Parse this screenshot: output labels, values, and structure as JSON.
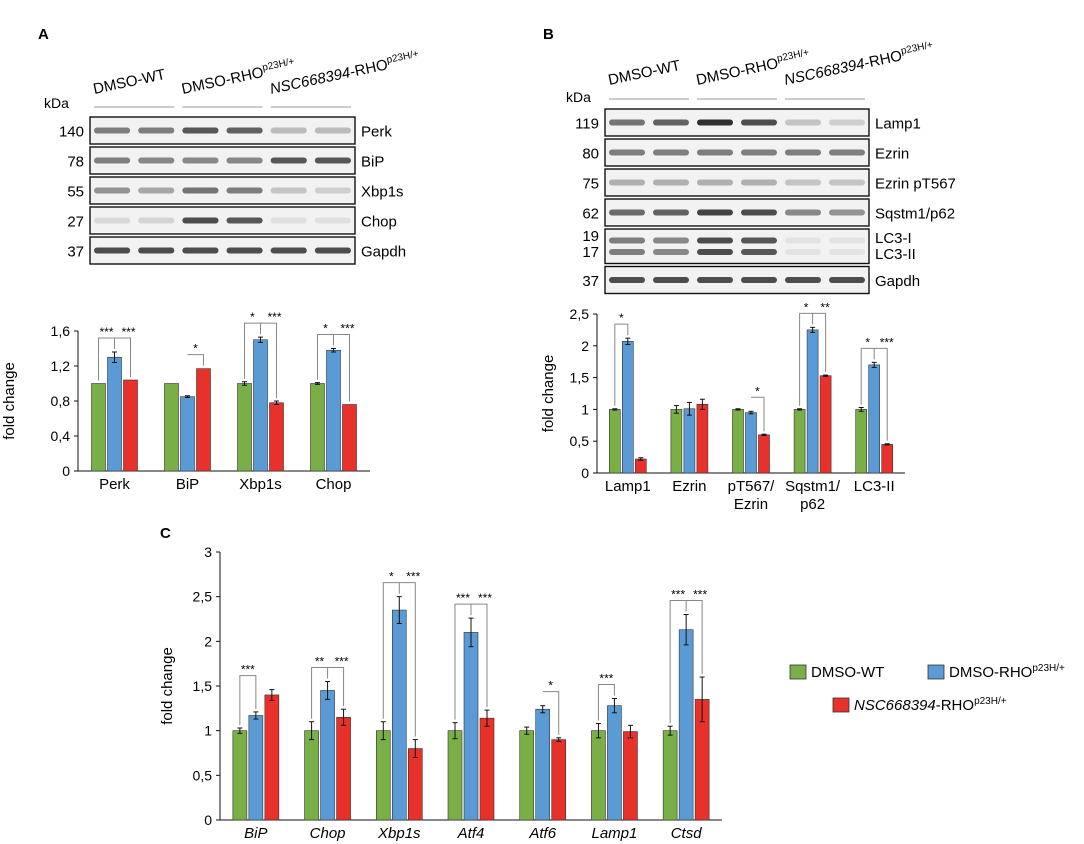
{
  "panels": {
    "A": {
      "letter": "A",
      "kda_label": "kDa",
      "lanes": [
        "DMSO-WT",
        "DMSO-RHO",
        "NSC668394-RHO"
      ],
      "lane_sup": "p23H/+",
      "rows": [
        {
          "mw": "140",
          "protein": "Perk",
          "intens": [
            0.55,
            0.55,
            0.75,
            0.7,
            0.25,
            0.25
          ]
        },
        {
          "mw": "78",
          "protein": "BiP",
          "intens": [
            0.55,
            0.5,
            0.5,
            0.5,
            0.75,
            0.75
          ]
        },
        {
          "mw": "55",
          "protein": "Xbp1s",
          "intens": [
            0.45,
            0.35,
            0.6,
            0.55,
            0.2,
            0.15
          ]
        },
        {
          "mw": "27",
          "protein": "Chop",
          "intens": [
            0.1,
            0.12,
            0.8,
            0.75,
            0.06,
            0.06
          ]
        },
        {
          "mw": "37",
          "protein": "Gapdh",
          "intens": [
            0.8,
            0.8,
            0.8,
            0.8,
            0.8,
            0.8
          ]
        }
      ]
    },
    "B": {
      "letter": "B",
      "kda_label": "kDa",
      "lanes": [
        "DMSO-WT",
        "DMSO-RHO",
        "NSC668394-RHO"
      ],
      "lane_sup": "p23H/+",
      "rows": [
        {
          "mw": "119",
          "protein": "Lamp1",
          "intens": [
            0.6,
            0.7,
            0.95,
            0.8,
            0.2,
            0.15
          ]
        },
        {
          "mw": "80",
          "protein": "Ezrin",
          "intens": [
            0.55,
            0.55,
            0.55,
            0.55,
            0.55,
            0.55
          ]
        },
        {
          "mw": "75",
          "protein": "Ezrin pT567",
          "intens": [
            0.3,
            0.3,
            0.3,
            0.3,
            0.2,
            0.2
          ]
        },
        {
          "mw": "62",
          "protein": "Sqstm1/p62",
          "intens": [
            0.65,
            0.7,
            0.85,
            0.8,
            0.5,
            0.45
          ]
        },
        {
          "mw": "19\n17",
          "protein": "LC3-I\nLC3-II",
          "intens": [
            0.55,
            0.5,
            0.8,
            0.75,
            0.05,
            0.05
          ]
        },
        {
          "mw": "37",
          "protein": "Gapdh",
          "intens": [
            0.8,
            0.8,
            0.8,
            0.8,
            0.8,
            0.8
          ]
        }
      ]
    },
    "C": {
      "letter": "C"
    }
  },
  "legend": {
    "items": [
      {
        "label": "DMSO-WT",
        "color": "#7aae47"
      },
      {
        "label": "DMSO-RHO",
        "sup": "p23H/+",
        "color": "#5b9bd5"
      },
      {
        "label_italic": "NSC668394",
        "label": "-RHO",
        "sup": "p23H/+",
        "color": "#e8312b"
      }
    ]
  },
  "chart_data": [
    {
      "type": "bar",
      "panel": "A",
      "categories": [
        "Perk",
        "BiP",
        "Xbp1s",
        "Chop"
      ],
      "ylabel": "fold change",
      "ylim": [
        0,
        1.6
      ],
      "yticks": [
        "0",
        "0,4",
        "0,8",
        "1,2",
        "1,6"
      ],
      "series": [
        {
          "values": [
            1.0,
            1.0,
            1.0,
            1.0
          ],
          "errors": [
            0,
            0,
            0.02,
            0.01
          ],
          "color": "#7aae47"
        },
        {
          "values": [
            1.3,
            0.85,
            1.5,
            1.38
          ],
          "errors": [
            0.06,
            0.01,
            0.03,
            0.02
          ],
          "color": "#5b9bd5"
        },
        {
          "values": [
            1.04,
            1.17,
            0.78,
            0.76
          ],
          "errors": [
            0,
            0,
            0.02,
            0
          ],
          "color": "#e8312b"
        }
      ],
      "significance": [
        [
          "***",
          "***"
        ],
        [
          "",
          "*"
        ],
        [
          "*",
          "***"
        ],
        [
          "*",
          "***"
        ]
      ]
    },
    {
      "type": "bar",
      "panel": "B",
      "categories": [
        "Lamp1",
        "Ezrin",
        "pT567/\nEzrin",
        "Sqstm1/\np62",
        "LC3-II"
      ],
      "ylabel": "fold change",
      "ylim": [
        0,
        2.5
      ],
      "yticks": [
        "0",
        "0,5",
        "1",
        "1,5",
        "2",
        "2,5"
      ],
      "series": [
        {
          "values": [
            1.0,
            1.0,
            1.0,
            1.0,
            1.0
          ],
          "errors": [
            0.01,
            0.06,
            0.01,
            0.01,
            0.03
          ],
          "color": "#7aae47"
        },
        {
          "values": [
            2.07,
            1.01,
            0.95,
            2.25,
            1.7
          ],
          "errors": [
            0.05,
            0.1,
            0.02,
            0.04,
            0.04
          ],
          "color": "#5b9bd5"
        },
        {
          "values": [
            0.22,
            1.08,
            0.6,
            1.53,
            0.45
          ],
          "errors": [
            0.02,
            0.08,
            0.01,
            0.01,
            0.01
          ],
          "color": "#e8312b"
        }
      ],
      "significance": [
        [
          "*",
          ""
        ],
        [
          "",
          ""
        ],
        [
          "",
          "*"
        ],
        [
          "*",
          "**"
        ],
        [
          "*",
          "***"
        ]
      ]
    },
    {
      "type": "bar",
      "panel": "C",
      "categories": [
        "BiP",
        "Chop",
        "Xbp1s",
        "Atf4",
        "Atf6",
        "Lamp1",
        "Ctsd"
      ],
      "ylabel": "fold change",
      "ylim": [
        0,
        3
      ],
      "yticks": [
        "0",
        "0,5",
        "1",
        "1,5",
        "2",
        "2,5",
        "3"
      ],
      "series": [
        {
          "values": [
            1.0,
            1.0,
            1.0,
            1.0,
            1.0,
            1.0,
            1.0
          ],
          "errors": [
            0.03,
            0.1,
            0.1,
            0.09,
            0.04,
            0.08,
            0.05
          ],
          "color": "#7aae47"
        },
        {
          "values": [
            1.17,
            1.45,
            2.35,
            2.1,
            1.24,
            1.28,
            2.13
          ],
          "errors": [
            0.04,
            0.1,
            0.15,
            0.16,
            0.04,
            0.08,
            0.17
          ],
          "color": "#5b9bd5"
        },
        {
          "values": [
            1.4,
            1.15,
            0.8,
            1.14,
            0.9,
            0.99,
            1.35
          ],
          "errors": [
            0.06,
            0.09,
            0.1,
            0.09,
            0.02,
            0.07,
            0.25
          ],
          "color": "#e8312b"
        }
      ],
      "significance": [
        [
          "***",
          ""
        ],
        [
          "**",
          "***"
        ],
        [
          "*",
          "***"
        ],
        [
          "***",
          "***"
        ],
        [
          "",
          "*"
        ],
        [
          "***",
          ""
        ],
        [
          "***",
          "***"
        ]
      ]
    }
  ]
}
